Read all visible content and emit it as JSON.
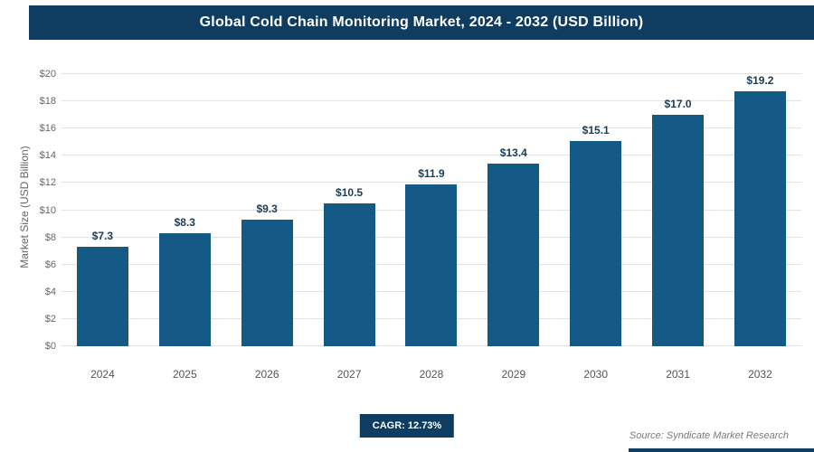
{
  "header": {
    "title": "Global Cold Chain Monitoring Market, 2024 - 2032 (USD Billion)"
  },
  "chart_data": {
    "type": "bar",
    "title": "Global Cold Chain Monitoring Market, 2024 - 2032 (USD Billion)",
    "categories": [
      "2024",
      "2025",
      "2026",
      "2027",
      "2028",
      "2029",
      "2030",
      "2031",
      "2032"
    ],
    "values": [
      7.3,
      8.3,
      9.3,
      10.5,
      11.9,
      13.4,
      15.1,
      17.0,
      19.2
    ],
    "bar_labels": [
      "$7.3",
      "$8.3",
      "$9.3",
      "$10.5",
      "$11.9",
      "$13.4",
      "$15.1",
      "$17.0",
      "$19.2"
    ],
    "xlabel": "",
    "ylabel": "Market Size (USD Billion)",
    "ylim": [
      0,
      20
    ],
    "y_ticks": [
      0,
      2,
      4,
      6,
      8,
      10,
      12,
      14,
      16,
      18,
      20
    ],
    "y_tick_labels": [
      "$0",
      "$2",
      "$4",
      "$6",
      "$8",
      "$10",
      "$12",
      "$14",
      "$16",
      "$18",
      "$20"
    ],
    "grid": "horizontal",
    "legend_position": "none",
    "bar_color": "#155a87"
  },
  "footer": {
    "cagr_label": "CAGR: 12.73%",
    "source": "Source: Syndicate Market Research"
  },
  "colors": {
    "accent_navy": "#0f3c61",
    "bar_blue": "#155a87",
    "grid_gray": "#e3e3e3"
  }
}
